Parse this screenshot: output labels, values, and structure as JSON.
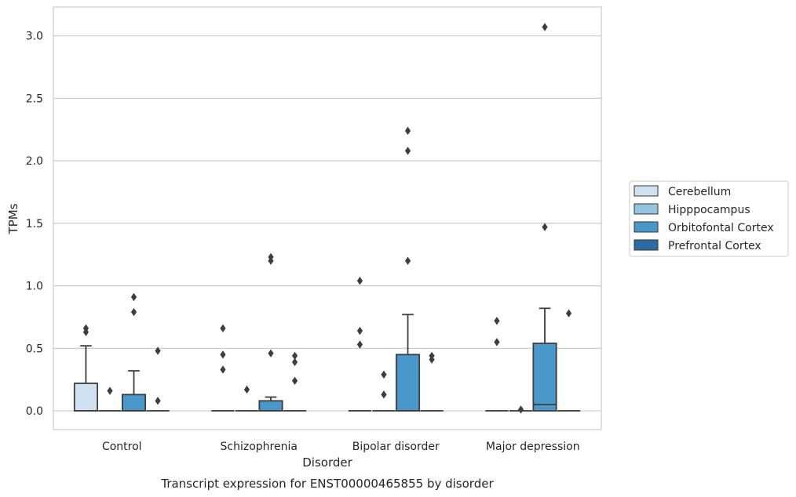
{
  "chart_data": {
    "type": "box",
    "title": "",
    "caption": "Transcript expression for ENST00000465855 by disorder",
    "xlabel": "Disorder",
    "ylabel": "TPMs",
    "ylim": [
      -0.15,
      3.23
    ],
    "yticks": [
      0.0,
      0.5,
      1.0,
      1.5,
      2.0,
      2.5,
      3.0
    ],
    "ytick_labels": [
      "0.0",
      "0.5",
      "1.0",
      "1.5",
      "2.0",
      "2.5",
      "3.0"
    ],
    "grid": "horizontal",
    "legend_position": "right",
    "categories": [
      "Control",
      "Schizophrenia",
      "Bipolar disorder",
      "Major depression"
    ],
    "series": [
      {
        "name": "Cerebellum",
        "color": "#d0e1f2",
        "boxes": [
          {
            "q1": 0.0,
            "median": 0.0,
            "q3": 0.22,
            "whisker_low": 0.0,
            "whisker_high": 0.52,
            "outliers": [
              0.63,
              0.66
            ]
          },
          {
            "q1": 0.0,
            "median": 0.0,
            "q3": 0.0,
            "whisker_low": 0.0,
            "whisker_high": 0.0,
            "outliers": [
              0.33,
              0.45,
              0.66
            ]
          },
          {
            "q1": 0.0,
            "median": 0.0,
            "q3": 0.0,
            "whisker_low": 0.0,
            "whisker_high": 0.0,
            "outliers": [
              0.53,
              0.64,
              1.04
            ]
          },
          {
            "q1": 0.0,
            "median": 0.0,
            "q3": 0.0,
            "whisker_low": 0.0,
            "whisker_high": 0.0,
            "outliers": [
              0.55,
              0.72
            ]
          }
        ]
      },
      {
        "name": "Hipppocampus",
        "color": "#94c4df",
        "boxes": [
          {
            "q1": 0.0,
            "median": 0.0,
            "q3": 0.0,
            "whisker_low": 0.0,
            "whisker_high": 0.0,
            "outliers": [
              0.16
            ]
          },
          {
            "q1": 0.0,
            "median": 0.0,
            "q3": 0.0,
            "whisker_low": 0.0,
            "whisker_high": 0.0,
            "outliers": [
              0.17
            ]
          },
          {
            "q1": 0.0,
            "median": 0.0,
            "q3": 0.0,
            "whisker_low": 0.0,
            "whisker_high": 0.0,
            "outliers": [
              0.13,
              0.29
            ]
          },
          {
            "q1": 0.0,
            "median": 0.0,
            "q3": 0.0,
            "whisker_low": 0.0,
            "whisker_high": 0.0,
            "outliers": [
              0.01
            ]
          }
        ]
      },
      {
        "name": "Orbitofontal Cortex",
        "color": "#4a98c9",
        "boxes": [
          {
            "q1": 0.0,
            "median": 0.0,
            "q3": 0.13,
            "whisker_low": 0.0,
            "whisker_high": 0.32,
            "outliers": [
              0.79,
              0.91
            ]
          },
          {
            "q1": 0.0,
            "median": 0.0,
            "q3": 0.08,
            "whisker_low": 0.0,
            "whisker_high": 0.11,
            "outliers": [
              0.46,
              1.2,
              1.23
            ]
          },
          {
            "q1": 0.0,
            "median": 0.0,
            "q3": 0.45,
            "whisker_low": 0.0,
            "whisker_high": 0.77,
            "outliers": [
              1.2,
              2.08,
              2.24
            ]
          },
          {
            "q1": 0.0,
            "median": 0.05,
            "q3": 0.54,
            "whisker_low": 0.0,
            "whisker_high": 0.82,
            "outliers": [
              1.47,
              3.07
            ]
          }
        ]
      },
      {
        "name": "Prefrontal Cortex",
        "color": "#2b6ba6",
        "boxes": [
          {
            "q1": 0.0,
            "median": 0.0,
            "q3": 0.0,
            "whisker_low": 0.0,
            "whisker_high": 0.0,
            "outliers": [
              0.08,
              0.48
            ]
          },
          {
            "q1": 0.0,
            "median": 0.0,
            "q3": 0.0,
            "whisker_low": 0.0,
            "whisker_high": 0.0,
            "outliers": [
              0.24,
              0.39,
              0.44
            ]
          },
          {
            "q1": 0.0,
            "median": 0.0,
            "q3": 0.0,
            "whisker_low": 0.0,
            "whisker_high": 0.0,
            "outliers": [
              0.41,
              0.44
            ]
          },
          {
            "q1": 0.0,
            "median": 0.0,
            "q3": 0.0,
            "whisker_low": 0.0,
            "whisker_high": 0.0,
            "outliers": [
              0.78
            ]
          }
        ]
      }
    ]
  }
}
